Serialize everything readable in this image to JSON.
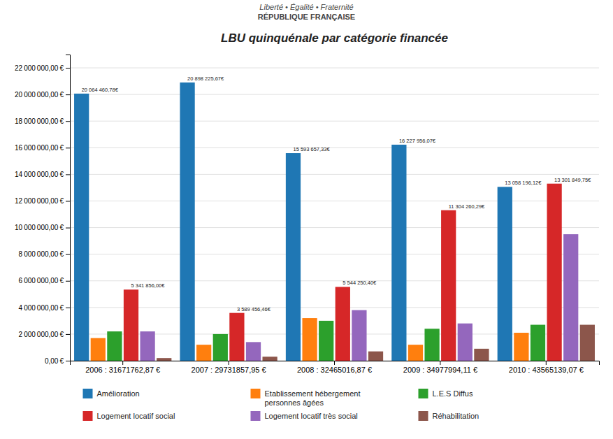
{
  "chart_data": {
    "type": "bar",
    "title": "LBU quinquénale par catégorie financée",
    "annotations": [
      "Liberté • Égalité • Fraternité",
      "RÉPUBLIQUE FRANÇAISE"
    ],
    "categories": [
      "2006 : 31671762,87 €",
      "2007 : 29731857,95 €",
      "2008 : 32465016,87 €",
      "2009 : 34977994,11 €",
      "2010 : 43565139,07 €"
    ],
    "series": [
      {
        "name": "Amélioration",
        "values": [
          20064460.78,
          20898225.67,
          15593657.33,
          16227956.07,
          13058196.12
        ],
        "data_labels": true,
        "value_labels": [
          "20 064 460,78€",
          "20 898 225,67€",
          "15 593 657,33€",
          "16 227 956,07€",
          "13 058 196,12€"
        ]
      },
      {
        "name": "Etablissement hébergement\npersonnes âgées",
        "values": [
          1700000,
          1200000,
          3200000,
          1200000,
          2100000
        ]
      },
      {
        "name": "L.E.S Diffus",
        "values": [
          2200000,
          2000000,
          3000000,
          2400000,
          2700000
        ]
      },
      {
        "name": "Logement locatif social",
        "values": [
          5341856.0,
          3589456.46,
          5544250.4,
          11304260.29,
          13301849.75
        ],
        "data_labels": true,
        "value_labels": [
          "5 341 856,00€",
          "3 589 456,46€",
          "5 544 250,40€",
          "11 304 260,29€",
          "13 301 849,75€"
        ]
      },
      {
        "name": "Logement locatif très social",
        "values": [
          2200000,
          1400000,
          3800000,
          2800000,
          9500000
        ]
      },
      {
        "name": "Réhabilitation",
        "values": [
          200000,
          300000,
          700000,
          900000,
          2700000
        ]
      }
    ],
    "ylim": [
      0,
      23000000
    ],
    "yticks": [
      {
        "value": 0,
        "label": "0,00 €"
      },
      {
        "value": 2000000,
        "label": "2 000 000,00 €"
      },
      {
        "value": 4000000,
        "label": "4 000 000,00 €"
      },
      {
        "value": 6000000,
        "label": "6 000 000,00 €"
      },
      {
        "value": 8000000,
        "label": "8 000 000,00 €"
      },
      {
        "value": 10000000,
        "label": "10 000 000,00 €"
      },
      {
        "value": 12000000,
        "label": "12 000 000,00 €"
      },
      {
        "value": 14000000,
        "label": "14 000 000,00 €"
      },
      {
        "value": 16000000,
        "label": "16 000 000,00 €"
      },
      {
        "value": 18000000,
        "label": "18 000 000,00 €"
      },
      {
        "value": 20000000,
        "label": "20 000 000,00 €"
      },
      {
        "value": 22000000,
        "label": "22 000 000,00 €"
      }
    ],
    "grid": true,
    "legend": "bottom"
  }
}
